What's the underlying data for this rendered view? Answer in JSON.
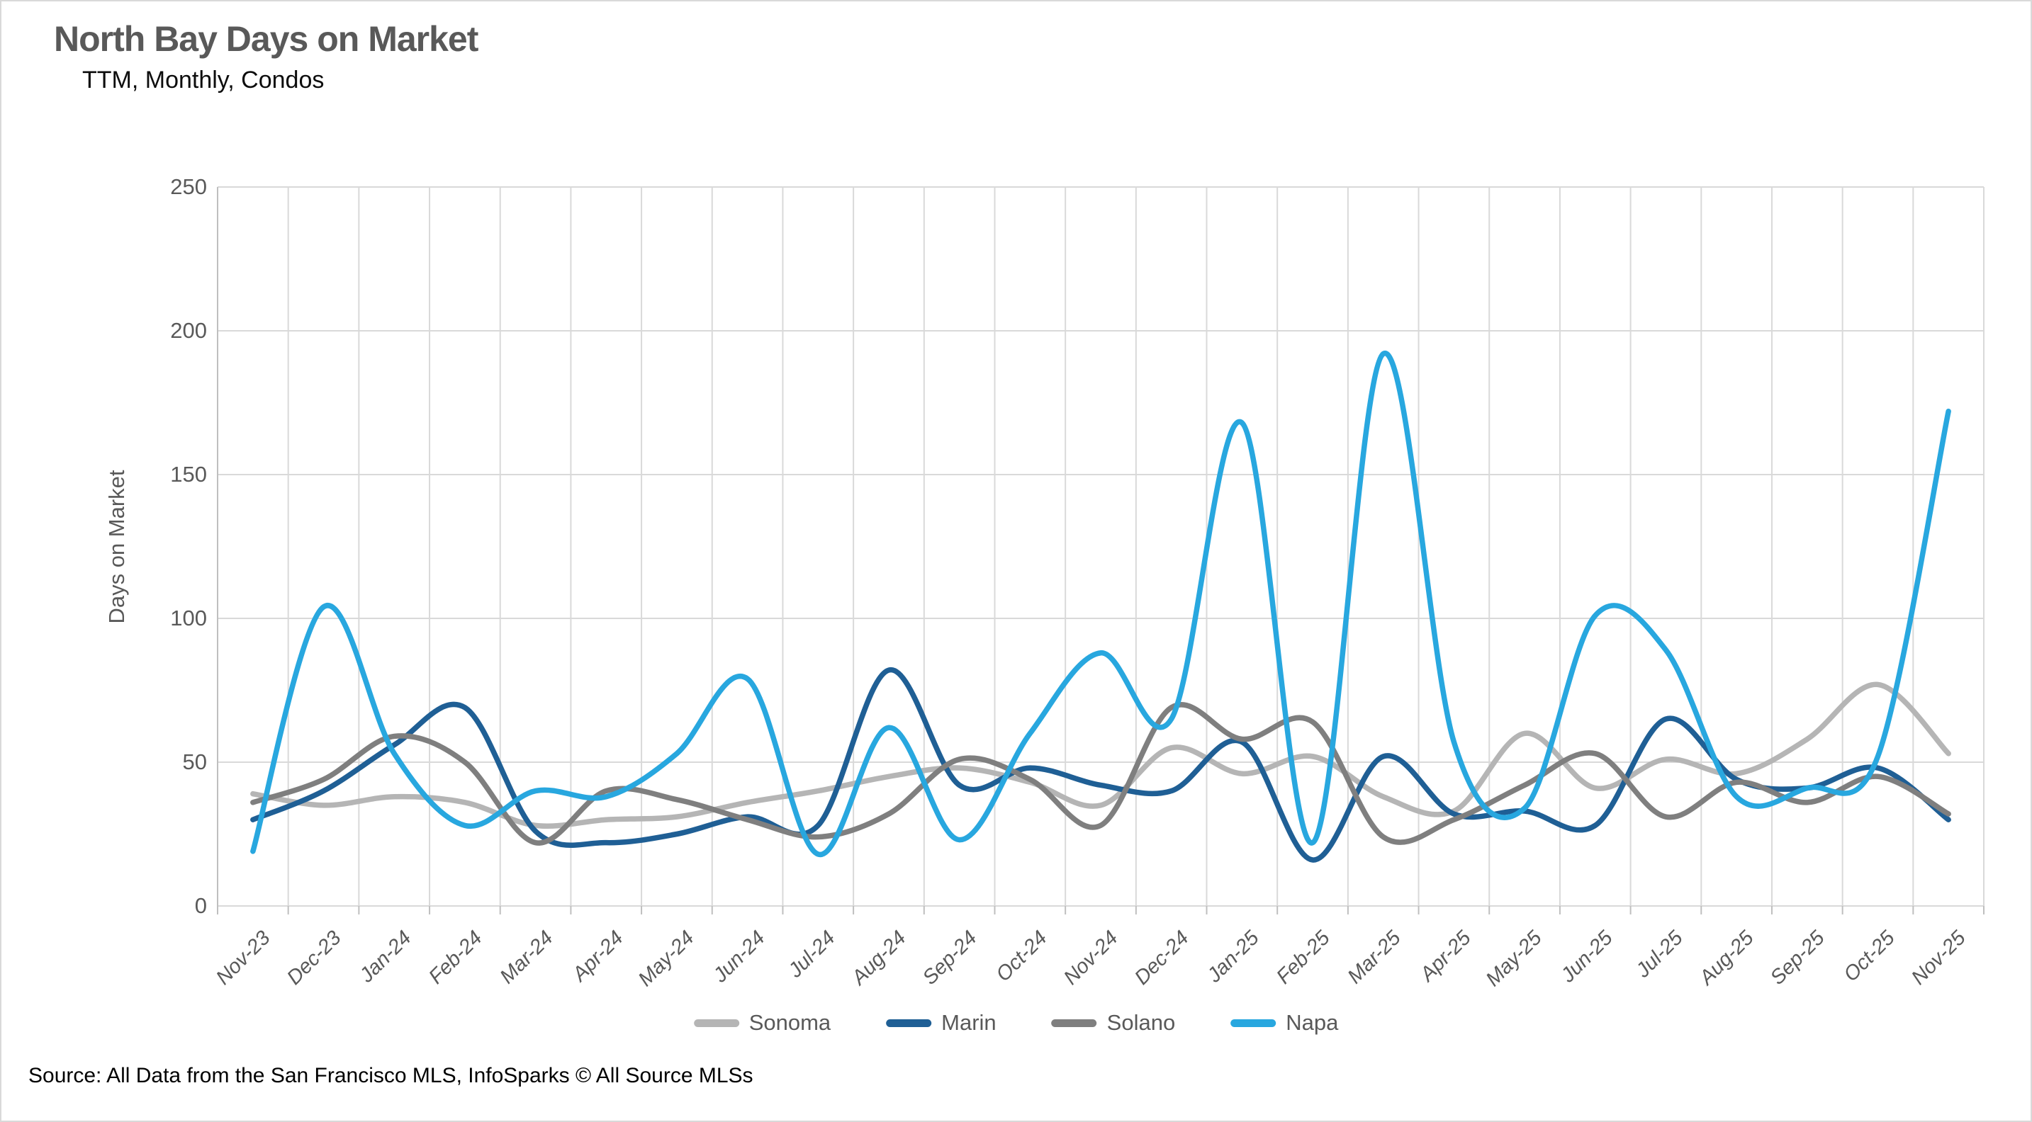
{
  "card": {
    "title": "North Bay Days on Market",
    "subtitle": "TTM, Monthly, Condos",
    "source": "Source: All Data from the San Francisco MLS, InfoSparks © All Source MLSs"
  },
  "chart_data": {
    "type": "line",
    "title": "North Bay Days on Market",
    "subtitle": "TTM, Monthly, Condos",
    "xlabel": "",
    "ylabel": "Days on Market",
    "ylim": [
      0,
      250
    ],
    "yticks": [
      0,
      50,
      100,
      150,
      200,
      250
    ],
    "grid": true,
    "smoothing": true,
    "legend_position": "bottom",
    "categories": [
      "Nov-23",
      "Dec-23",
      "Jan-24",
      "Feb-24",
      "Mar-24",
      "Apr-24",
      "May-24",
      "Jun-24",
      "Jul-24",
      "Aug-24",
      "Sep-24",
      "Oct-24",
      "Nov-24",
      "Dec-24",
      "Jan-25",
      "Feb-25",
      "Mar-25",
      "Apr-25",
      "May-25",
      "Jun-25",
      "Jul-25",
      "Aug-25",
      "Sep-25",
      "Oct-25",
      "Nov-25"
    ],
    "series": [
      {
        "name": "Sonoma",
        "color": "#B5B5B5",
        "values": [
          39,
          35,
          38,
          36,
          28,
          30,
          31,
          36,
          40,
          45,
          48,
          43,
          35,
          55,
          46,
          52,
          38,
          33,
          60,
          41,
          51,
          46,
          58,
          77,
          53
        ]
      },
      {
        "name": "Marin",
        "color": "#1F5F95",
        "values": [
          30,
          40,
          56,
          69,
          26,
          22,
          25,
          31,
          28,
          82,
          42,
          48,
          42,
          40,
          57,
          16,
          52,
          32,
          33,
          28,
          65,
          44,
          41,
          48,
          30
        ]
      },
      {
        "name": "Solano",
        "color": "#7F7F7F",
        "values": [
          36,
          44,
          59,
          50,
          22,
          40,
          37,
          30,
          24,
          32,
          51,
          44,
          28,
          69,
          58,
          64,
          24,
          30,
          42,
          53,
          31,
          43,
          36,
          45,
          32
        ]
      },
      {
        "name": "Napa",
        "color": "#28A7DF",
        "values": [
          19,
          104,
          53,
          28,
          40,
          38,
          53,
          79,
          18,
          62,
          23,
          60,
          88,
          65,
          168,
          22,
          192,
          57,
          34,
          101,
          89,
          38,
          41,
          52,
          172
        ]
      }
    ],
    "colors": {
      "grid": "#D9D9D9",
      "axis": "#BFBFBF",
      "title_text": "#595959",
      "tick_text": "#595959"
    }
  }
}
